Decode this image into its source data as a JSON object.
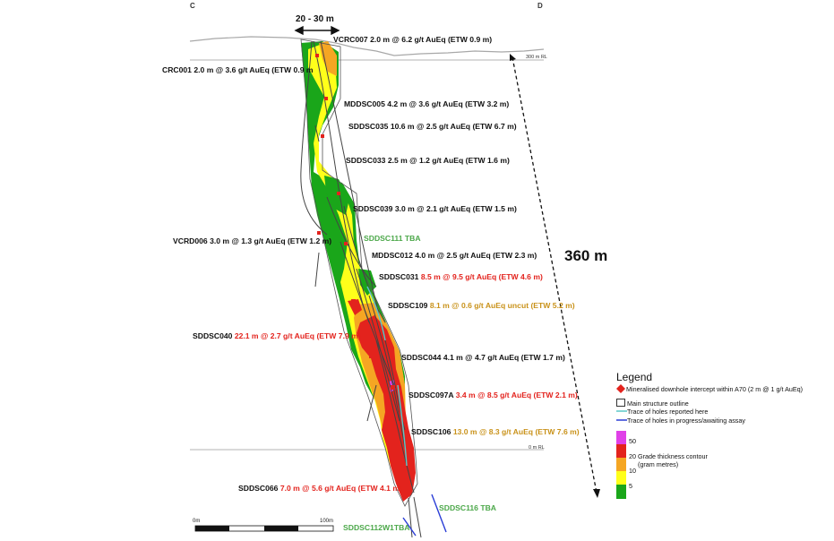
{
  "section": {
    "corner_left": "C",
    "corner_right": "D",
    "width_label": "20 - 30 m",
    "depth_label": "360 m",
    "rl_top": "300 m RL",
    "rl_zero": "0 m RL",
    "scale_start": "0m",
    "scale_end": "100m"
  },
  "intercepts": [
    {
      "hole": "VCRC007",
      "text": "2.0 m @ 6.2 g/t AuEq (ETW 0.9 m)",
      "style": "hole"
    },
    {
      "hole": "CRC001",
      "text": "2.0 m @ 3.6 g/t AuEq (ETW 0.9 m",
      "style": "hole"
    },
    {
      "hole": "MDDSC005",
      "text": "4.2 m @ 3.6 g/t AuEq (ETW 3.2 m)",
      "style": "hole"
    },
    {
      "hole": "SDDSC035",
      "text": "10.6 m @ 2.5 g/t AuEq (ETW 6.7 m)",
      "style": "hole"
    },
    {
      "hole": "SDDSC033",
      "text": "2.5 m @ 1.2 g/t AuEq (ETW 1.6 m)",
      "style": "hole"
    },
    {
      "hole": "SDDSC039",
      "text": "3.0 m @ 2.1 g/t AuEq (ETW 1.5 m)",
      "style": "hole"
    },
    {
      "hole": "SDDSC111",
      "text": "TBA",
      "style": "green"
    },
    {
      "hole": "VCRD006",
      "text": "3.0 m @ 1.3 g/t AuEq (ETW 1.2 m)",
      "style": "hole"
    },
    {
      "hole": "MDDSC012",
      "text": "4.0 m @ 2.5 g/t AuEq (ETW 2.3 m)",
      "style": "hole"
    },
    {
      "hole": "SDDSC031",
      "text": "8.5 m @ 9.5 g/t AuEq (ETW 4.6 m)",
      "style": "red"
    },
    {
      "hole": "SDDSC109",
      "text": "8.1 m @ 0.6 g/t AuEq uncut (ETW 5.2 m)",
      "style": "gold"
    },
    {
      "hole": "SDDSC040",
      "text": "22.1 m @ 2.7 g/t AuEq (ETW 7.9 m)",
      "style": "red"
    },
    {
      "hole": "SDDSC044",
      "text": "4.1 m @ 4.7 g/t AuEq (ETW 1.7 m)",
      "style": "hole"
    },
    {
      "hole": "SDDSC097A",
      "text": "3.4 m @ 8.5 g/t AuEq (ETW 2.1 m)",
      "style": "red"
    },
    {
      "hole": "SDDSC106",
      "text": "13.0 m @ 8.3 g/t AuEq (ETW 7.6 m)",
      "style": "gold"
    },
    {
      "hole": "SDDSC066",
      "text": "7.0 m @ 5.6 g/t AuEq (ETW 4.1 m)",
      "style": "red"
    },
    {
      "hole": "SDDSC116",
      "text": "TBA",
      "style": "green"
    },
    {
      "hole": "SDDSC112W1",
      "text": "TBA",
      "style": "green"
    }
  ],
  "legend": {
    "title": "Legend",
    "items": [
      {
        "label": "Mineralised downhole intercept within A70 (2 m @ 1 g/t AuEq)",
        "icon": "red-diamond",
        "color": "#e3231d"
      },
      {
        "label": "Main structure outline",
        "icon": "outline-box",
        "color": "#333333"
      },
      {
        "label": "Trace of holes reported here",
        "icon": "line",
        "color": "#5bc8c8"
      },
      {
        "label": "Trace of holes in progress/awaiting assay",
        "icon": "line",
        "color": "#2a3dd6"
      }
    ],
    "contour_title": "Grade thickness contour",
    "contour_sub": "(gram metres)",
    "contour_values": [
      "50",
      "20",
      "10",
      "5"
    ],
    "contour_colors": [
      "#e040e8",
      "#e3231d",
      "#f5a623",
      "#ffff1a",
      "#1aa61a"
    ]
  }
}
